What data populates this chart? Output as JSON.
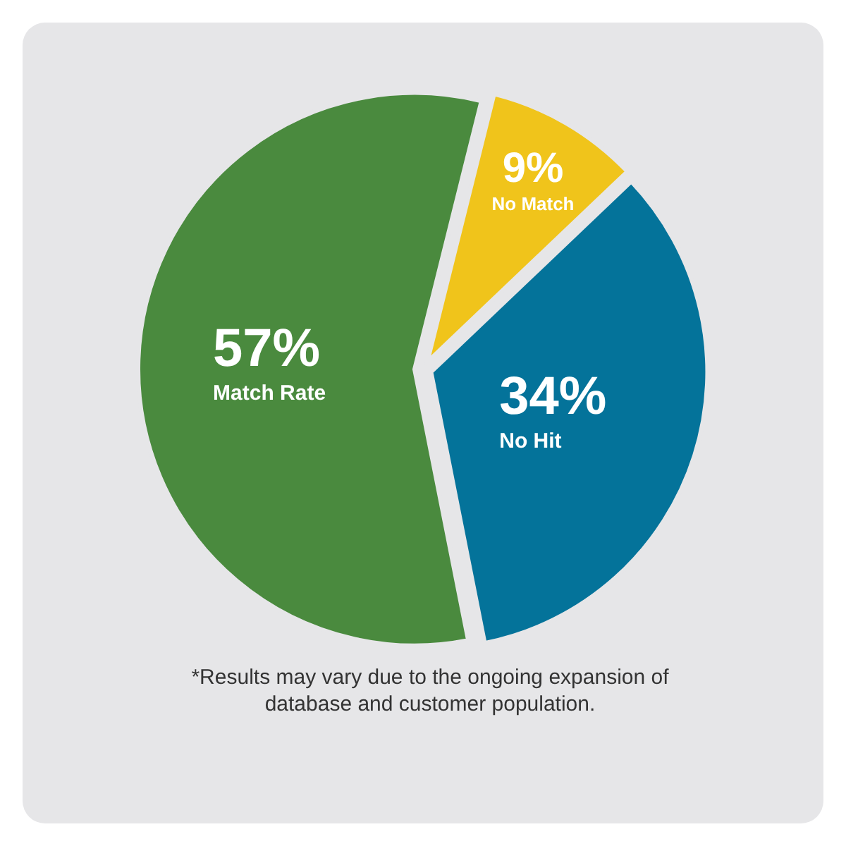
{
  "chart_data": {
    "type": "pie",
    "categories": [
      "No Match",
      "No Hit",
      "Match Rate"
    ],
    "values": [
      9,
      34,
      57
    ],
    "colors": [
      "#f0c41b",
      "#04739a",
      "#4a8a3e"
    ],
    "value_labels": [
      "9%",
      "34%",
      "57%"
    ],
    "annotations": [
      "*Results may vary due to the ongoing expansion of database and customer population."
    ]
  }
}
